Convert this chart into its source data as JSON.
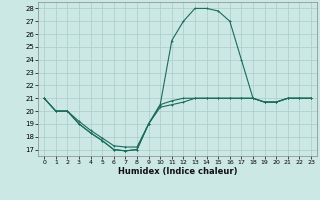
{
  "xlabel": "Humidex (Indice chaleur)",
  "xlim": [
    -0.5,
    23.5
  ],
  "ylim": [
    16.5,
    28.5
  ],
  "yticks": [
    17,
    18,
    19,
    20,
    21,
    22,
    23,
    24,
    25,
    26,
    27,
    28
  ],
  "xticks": [
    0,
    1,
    2,
    3,
    4,
    5,
    6,
    7,
    8,
    9,
    10,
    11,
    12,
    13,
    14,
    15,
    16,
    17,
    18,
    19,
    20,
    21,
    22,
    23
  ],
  "background_color": "#cce8e4",
  "grid_color": "#aaccc8",
  "line_color": "#1a6b5a",
  "line1_x": [
    0,
    1,
    2,
    3,
    4,
    5,
    6,
    7,
    8,
    9,
    10,
    11,
    12,
    13,
    14,
    15,
    16,
    17,
    18,
    19,
    20,
    21,
    22,
    23
  ],
  "line1_y": [
    21.0,
    20.0,
    20.0,
    19.2,
    18.5,
    17.9,
    17.3,
    17.2,
    17.2,
    19.0,
    20.3,
    20.5,
    20.7,
    21.0,
    21.0,
    21.0,
    21.0,
    21.0,
    21.0,
    20.7,
    20.7,
    21.0,
    21.0,
    21.0
  ],
  "line2_x": [
    0,
    1,
    2,
    3,
    4,
    5,
    6,
    7,
    8,
    9,
    10,
    11,
    12,
    13,
    14,
    15,
    16,
    17,
    18,
    19,
    20,
    21,
    22,
    23
  ],
  "line2_y": [
    21.0,
    20.0,
    20.0,
    19.0,
    18.3,
    17.7,
    17.0,
    16.9,
    17.0,
    19.0,
    20.5,
    20.8,
    21.0,
    21.0,
    21.0,
    21.0,
    21.0,
    21.0,
    21.0,
    20.7,
    20.7,
    21.0,
    21.0,
    21.0
  ],
  "line3_x": [
    0,
    1,
    2,
    3,
    4,
    5,
    6,
    7,
    8,
    9,
    10,
    11,
    12,
    13,
    14,
    15,
    16,
    17,
    18,
    19,
    20,
    21,
    22,
    23
  ],
  "line3_y": [
    21.0,
    20.0,
    20.0,
    19.0,
    18.3,
    17.7,
    17.0,
    16.9,
    17.0,
    19.0,
    20.5,
    25.5,
    27.0,
    28.0,
    28.0,
    27.8,
    27.0,
    24.0,
    21.0,
    20.7,
    20.7,
    21.0,
    21.0,
    21.0
  ],
  "lw": 0.8,
  "ms": 2.0,
  "mew": 0.7
}
